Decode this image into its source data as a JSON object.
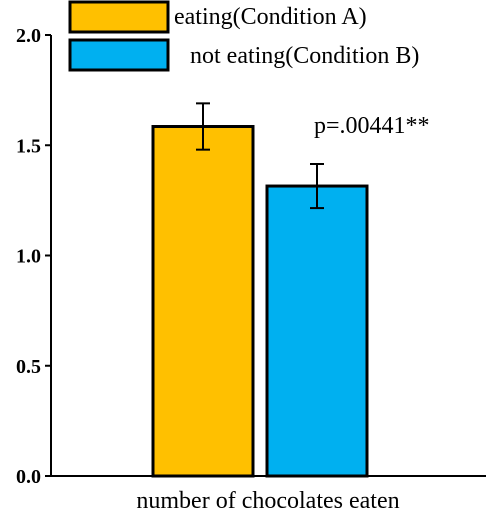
{
  "chart_data": {
    "type": "bar",
    "xlabel": "number of chocolates eaten",
    "ylabel": "",
    "ylim": [
      0,
      2.0
    ],
    "yticks": [
      0.0,
      0.5,
      1.0,
      1.5,
      2.0
    ],
    "ytick_labels": [
      "0.0",
      "0.5",
      "1.0",
      "1.5",
      "2.0"
    ],
    "grid": false,
    "legend_position": "top",
    "series": [
      {
        "name": "eating(Condition A)",
        "value": 1.585,
        "error": 0.105,
        "color": "#FFC000"
      },
      {
        "name": "not eating(Condition B)",
        "value": 1.315,
        "error": 0.1,
        "color": "#00B0F0"
      }
    ],
    "annotation": "p=.00441**"
  }
}
